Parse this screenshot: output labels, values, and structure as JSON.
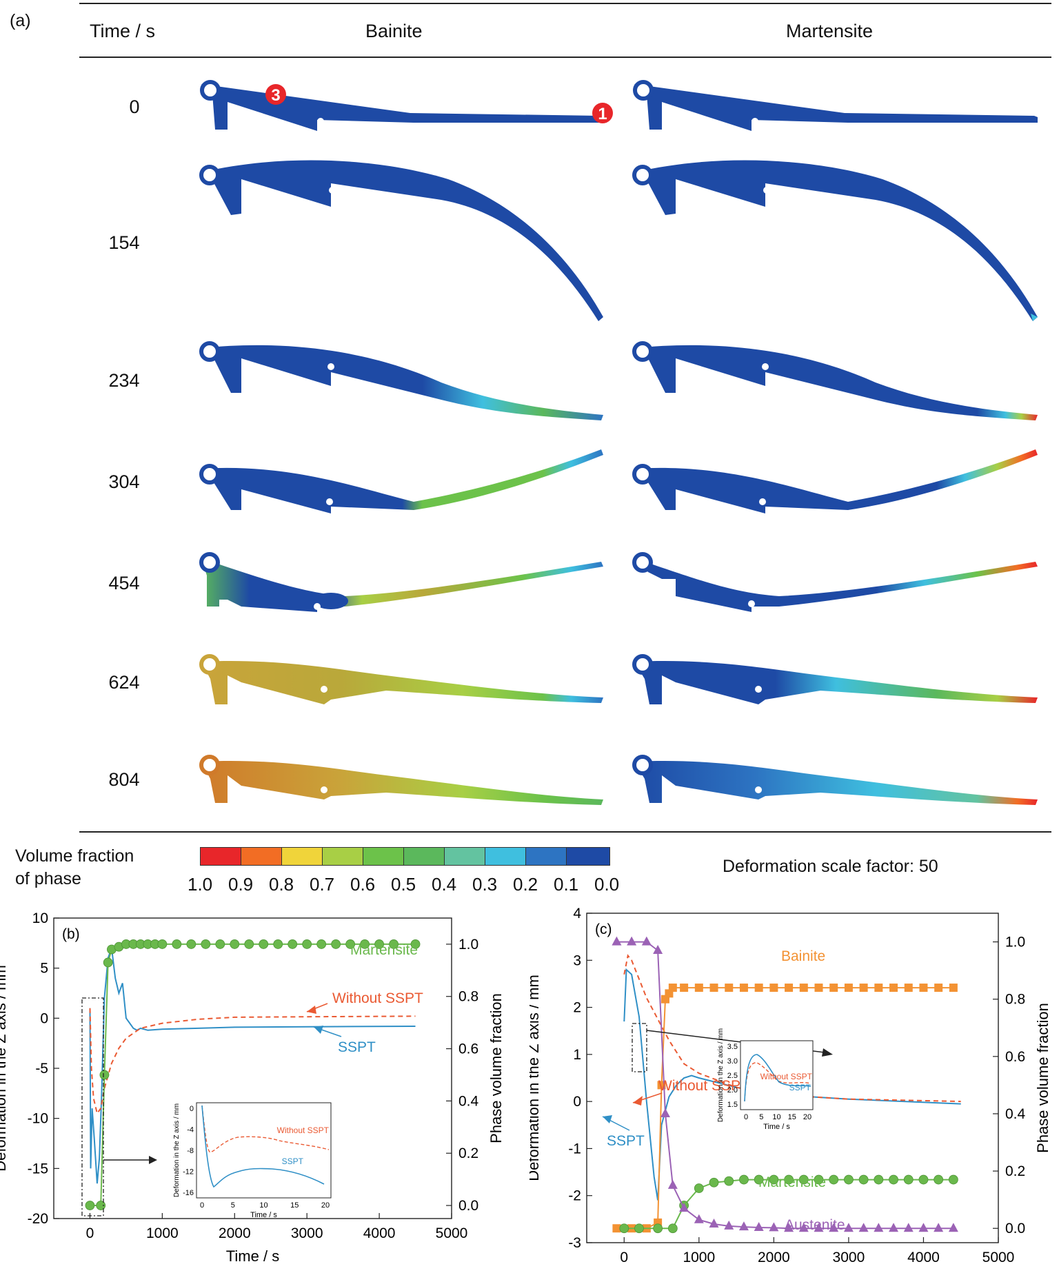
{
  "panel_a": {
    "label": "(a)",
    "headers": {
      "time": "Time / s",
      "bainite": "Bainite",
      "martensite": "Martensite"
    },
    "times": [
      "0",
      "154",
      "234",
      "304",
      "454",
      "624",
      "804"
    ],
    "markers": [
      "3",
      "1"
    ],
    "colorbar": {
      "title_line1": "Volume fraction",
      "title_line2": "of phase",
      "colors": [
        "#e8262a",
        "#f26d24",
        "#f0d43a",
        "#a8cf45",
        "#6cc24a",
        "#5bb85c",
        "#63c3a0",
        "#3fbfdf",
        "#2d74c2",
        "#1e4aa5"
      ],
      "ticks": [
        "1.0",
        "0.9",
        "0.8",
        "0.7",
        "0.6",
        "0.5",
        "0.4",
        "0.3",
        "0.2",
        "0.1",
        "0.0"
      ]
    },
    "scale_note": "Deformation scale factor: 50"
  },
  "chart_data": [
    {
      "type": "line",
      "label": "(b)",
      "xlabel": "Time / s",
      "ylabel": "Deformation in the Z axis / mm",
      "y2label": "Phase volume fraction",
      "xlim": [
        -500,
        5000
      ],
      "ylim": [
        -20,
        10
      ],
      "y2lim": [
        -0.05,
        1.1
      ],
      "xticks": [
        "0",
        "1000",
        "2000",
        "3000",
        "4000",
        "5000"
      ],
      "yticks": [
        "10",
        "5",
        "0",
        "-5",
        "-10",
        "-15",
        "-20"
      ],
      "y2ticks": [
        "1.0",
        "0.8",
        "0.6",
        "0.4",
        "0.2",
        "0.0"
      ],
      "series": [
        {
          "name": "SSPT",
          "axis": "left",
          "color": "#2f8fc6",
          "x": [
            0,
            10,
            30,
            60,
            100,
            130,
            160,
            200,
            250,
            300,
            350,
            400,
            450,
            500,
            550,
            600,
            650,
            700,
            800,
            1000,
            1500,
            2000,
            3000,
            4500
          ],
          "y": [
            1,
            -15,
            -9,
            -12,
            -16.5,
            -14,
            -8,
            2,
            6,
            7,
            4,
            2.5,
            3.5,
            0,
            -0.5,
            -1,
            -1.2,
            -1,
            -1.2,
            -1.1,
            -1,
            -0.9,
            -0.85,
            -0.8
          ]
        },
        {
          "name": "Without SSPT",
          "axis": "left",
          "color": "#ea5a33",
          "dashed": true,
          "x": [
            0,
            20,
            50,
            100,
            150,
            200,
            300,
            400,
            500,
            700,
            1000,
            1500,
            2000,
            3000,
            4500
          ],
          "y": [
            1,
            -5,
            -8,
            -9.5,
            -9,
            -7,
            -4.5,
            -3,
            -2,
            -1,
            -0.5,
            -0.1,
            0.1,
            0.15,
            0.2
          ]
        },
        {
          "name": "Martensite",
          "axis": "right",
          "color": "#6ab84c",
          "marker": "circle",
          "x": [
            0,
            150,
            200,
            250,
            300,
            400,
            500,
            600,
            700,
            800,
            900,
            1000,
            1200,
            1400,
            1600,
            1800,
            2000,
            2200,
            2400,
            2600,
            2800,
            3000,
            3200,
            3400,
            3600,
            3800,
            4000,
            4200,
            4500
          ],
          "y": [
            0,
            0,
            0.5,
            0.93,
            0.98,
            0.99,
            1,
            1,
            1,
            1,
            1,
            1,
            1,
            1,
            1,
            1,
            1,
            1,
            1,
            1,
            1,
            1,
            1,
            1,
            1,
            1,
            1,
            1,
            1
          ]
        }
      ],
      "annotations": [
        "Martensite",
        "Without SSPT",
        "SSPT"
      ],
      "inset": {
        "xlabel": "Time / s",
        "ylabel": "Deformation in the Z axis / mm",
        "xticks": [
          "0",
          "5",
          "10",
          "15",
          "20"
        ],
        "yticks": [
          "0",
          "-4",
          "-8",
          "-12",
          "-16"
        ],
        "labels": [
          "Without SSPT",
          "SSPT"
        ]
      }
    },
    {
      "type": "line",
      "label": "(c)",
      "xlabel": "Time / s",
      "ylabel": "Deformation in the Z axis / mm",
      "y2label": "Phase volume fraction",
      "xlim": [
        -500,
        5000
      ],
      "ylim": [
        -3,
        4
      ],
      "y2lim": [
        -0.05,
        1.1
      ],
      "xticks": [
        "0",
        "1000",
        "2000",
        "3000",
        "4000",
        "5000"
      ],
      "yticks": [
        "4",
        "3",
        "2",
        "1",
        "0",
        "-1",
        "-2",
        "-3"
      ],
      "y2ticks": [
        "1.0",
        "0.8",
        "0.6",
        "0.4",
        "0.2",
        "0.0"
      ],
      "series": [
        {
          "name": "SSPT",
          "axis": "left",
          "color": "#2f8fc6",
          "x": [
            0,
            30,
            100,
            200,
            300,
            400,
            450,
            500,
            600,
            700,
            800,
            900,
            1000,
            1500,
            2000,
            3000,
            4500
          ],
          "y": [
            1.7,
            2.8,
            2.7,
            1.8,
            0,
            -1.6,
            -2.1,
            -0.5,
            0.1,
            0.35,
            0.5,
            0.55,
            0.5,
            0.3,
            0.15,
            0.05,
            -0.05
          ]
        },
        {
          "name": "Without SSPT",
          "axis": "left",
          "color": "#ea5a33",
          "dashed": true,
          "x": [
            0,
            50,
            100,
            200,
            300,
            400,
            500,
            600,
            800,
            1000,
            1500,
            2000,
            3000,
            4500
          ],
          "y": [
            2.7,
            3.1,
            3.0,
            2.6,
            2.2,
            1.9,
            1.6,
            1.3,
            0.8,
            0.6,
            0.3,
            0.15,
            0.05,
            0
          ]
        },
        {
          "name": "Bainite",
          "axis": "right",
          "color": "#f39233",
          "marker": "square",
          "x": [
            -100,
            100,
            300,
            450,
            500,
            550,
            600,
            650,
            800,
            1000,
            1200,
            1400,
            1600,
            1800,
            2000,
            2200,
            2400,
            2600,
            2800,
            3000,
            3200,
            3400,
            3600,
            3800,
            4000,
            4200,
            4400
          ],
          "y": [
            0,
            0,
            0,
            0.02,
            0.5,
            0.8,
            0.82,
            0.84,
            0.84,
            0.84,
            0.84,
            0.84,
            0.84,
            0.84,
            0.84,
            0.84,
            0.84,
            0.84,
            0.84,
            0.84,
            0.84,
            0.84,
            0.84,
            0.84,
            0.84,
            0.84,
            0.84
          ]
        },
        {
          "name": "Martensite",
          "axis": "right",
          "color": "#6ab84c",
          "marker": "circle",
          "x": [
            0,
            200,
            450,
            650,
            800,
            1000,
            1200,
            1400,
            1600,
            1800,
            2000,
            2200,
            2400,
            2600,
            2800,
            3000,
            3200,
            3400,
            3600,
            3800,
            4000,
            4200,
            4400
          ],
          "y": [
            0,
            0,
            0,
            0,
            0.08,
            0.14,
            0.16,
            0.165,
            0.17,
            0.17,
            0.17,
            0.17,
            0.17,
            0.17,
            0.17,
            0.17,
            0.17,
            0.17,
            0.17,
            0.17,
            0.17,
            0.17,
            0.17
          ]
        },
        {
          "name": "Austenite",
          "axis": "right",
          "color": "#9b62b5",
          "marker": "triangle",
          "x": [
            -100,
            100,
            300,
            450,
            550,
            650,
            800,
            1000,
            1200,
            1400,
            1600,
            1800,
            2000,
            2200,
            2400,
            2600,
            2800,
            3000,
            3200,
            3400,
            3600,
            3800,
            4000,
            4200,
            4400
          ],
          "y": [
            1,
            1,
            1,
            0.97,
            0.4,
            0.15,
            0.07,
            0.03,
            0.015,
            0.008,
            0.005,
            0.003,
            0.002,
            0,
            0,
            0,
            0,
            0,
            0,
            0,
            0,
            0,
            0,
            0,
            0
          ]
        }
      ],
      "annotations": [
        "Bainite",
        "Without SSPT",
        "SSPT",
        "Martensite",
        "Austenite"
      ],
      "inset": {
        "xlabel": "Time / s",
        "ylabel": "Deformation in the Z axis / mm",
        "xticks": [
          "0",
          "5",
          "10",
          "15",
          "20"
        ],
        "yticks": [
          "3.5",
          "3.0",
          "2.5",
          "2.0",
          "1.5"
        ],
        "labels": [
          "Without SSPT",
          "SSPT"
        ]
      }
    }
  ]
}
